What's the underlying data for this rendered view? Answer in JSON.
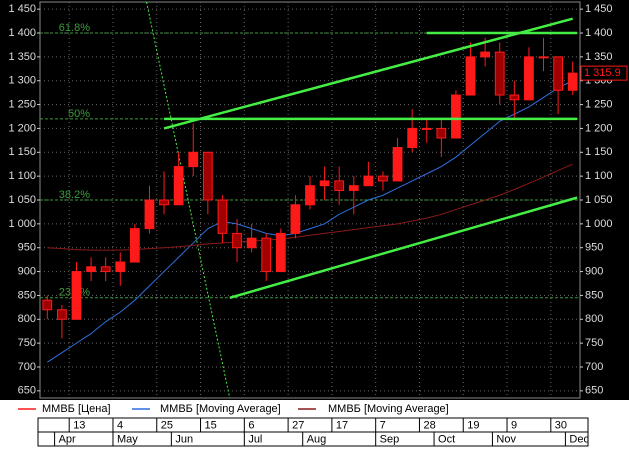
{
  "chart_data": {
    "type": "candlestick",
    "ylim": [
      635,
      1465
    ],
    "yticks": [
      650,
      700,
      750,
      800,
      850,
      900,
      950,
      {
        "value": 1000,
        "label": "1 000"
      },
      {
        "value": 1050,
        "label": "1 050"
      },
      {
        "value": 1100,
        "label": "1 100"
      },
      {
        "value": 1150,
        "label": "1 150"
      },
      {
        "value": 1200,
        "label": "1 200"
      },
      {
        "value": 1250,
        "label": "1 250"
      },
      {
        "value": 1300,
        "label": "1 300"
      },
      {
        "value": 1350,
        "label": "1 350"
      },
      {
        "value": 1400,
        "label": "1 400"
      },
      {
        "value": 1450,
        "label": "1 450"
      }
    ],
    "grid": true,
    "categories": [
      null,
      null,
      "13",
      null,
      null,
      "4",
      null,
      null,
      "25",
      null,
      null,
      "15",
      null,
      null,
      "6",
      null,
      null,
      "27",
      null,
      null,
      "17",
      null,
      null,
      "7",
      null,
      null,
      "28",
      null,
      null,
      "19",
      null,
      null,
      "9",
      null,
      null,
      "30",
      null
    ],
    "month_labels": [
      null,
      "Apr",
      null,
      null,
      null,
      "May",
      null,
      null,
      null,
      "Jun",
      null,
      null,
      null,
      null,
      "Jul",
      null,
      null,
      null,
      "Aug",
      null,
      null,
      null,
      null,
      "Sep",
      null,
      null,
      null,
      "Oct",
      null,
      null,
      null,
      "Nov",
      null,
      null,
      null,
      null,
      "Dec"
    ],
    "candles": {
      "name": "ММВБ [Цена]",
      "color": "#ff1a1a",
      "open": [
        840,
        820,
        800,
        900,
        910,
        900,
        920,
        990,
        1050,
        1040,
        1120,
        1150,
        1050,
        980,
        950,
        970,
        900,
        980,
        1040,
        1080,
        1090,
        1070,
        1080,
        1100,
        1090,
        1160,
        1200,
        1200,
        1180,
        1270,
        1350,
        1360,
        1270,
        1260,
        1350,
        1350,
        1280
      ],
      "high": [
        850,
        830,
        920,
        930,
        930,
        940,
        1000,
        1080,
        1110,
        1150,
        1210,
        1150,
        1060,
        1010,
        1000,
        980,
        990,
        1060,
        1100,
        1120,
        1120,
        1100,
        1130,
        1110,
        1180,
        1240,
        1220,
        1220,
        1280,
        1380,
        1390,
        1380,
        1300,
        1370,
        1390,
        1350,
        1340
      ],
      "low": [
        800,
        760,
        800,
        880,
        880,
        870,
        920,
        980,
        1020,
        1040,
        1100,
        1020,
        960,
        920,
        940,
        880,
        900,
        970,
        1030,
        1050,
        1040,
        1020,
        1080,
        1070,
        1090,
        1150,
        1170,
        1140,
        1180,
        1270,
        1330,
        1250,
        1220,
        1260,
        1320,
        1230,
        1270
      ],
      "close": [
        820,
        800,
        900,
        910,
        900,
        920,
        990,
        1050,
        1040,
        1120,
        1150,
        1050,
        980,
        950,
        970,
        900,
        980,
        1040,
        1080,
        1090,
        1070,
        1080,
        1100,
        1090,
        1160,
        1200,
        1200,
        1180,
        1270,
        1350,
        1360,
        1270,
        1260,
        1350,
        1350,
        1280,
        1315.9
      ]
    },
    "last_value_label": "1 315.9",
    "series": [
      {
        "name": "ММВБ [Moving Average]",
        "color": "#2f6fe0",
        "values": [
          710,
          730,
          750,
          770,
          795,
          815,
          840,
          870,
          900,
          930,
          960,
          990,
          1005,
          1000,
          990,
          980,
          975,
          980,
          990,
          1000,
          1020,
          1035,
          1050,
          1060,
          1075,
          1090,
          1105,
          1120,
          1140,
          1165,
          1190,
          1215,
          1230,
          1245,
          1265,
          1285,
          1300
        ]
      },
      {
        "name": "ММВБ [Moving Average]",
        "color": "#8b1a1a",
        "values": [
          950,
          948,
          946,
          945,
          945,
          945,
          946,
          948,
          950,
          952,
          955,
          958,
          960,
          962,
          964,
          966,
          968,
          972,
          976,
          980,
          984,
          988,
          992,
          996,
          1000,
          1006,
          1012,
          1020,
          1030,
          1040,
          1050,
          1060,
          1072,
          1085,
          1098,
          1112,
          1125
        ]
      }
    ],
    "trend_lines": [
      {
        "color": "#44ee44",
        "points": [
          [
            8,
            1200
          ],
          [
            36,
            1430
          ]
        ]
      },
      {
        "color": "#44ee44",
        "points": [
          [
            12.5,
            845
          ],
          [
            36.3,
            1055
          ]
        ]
      },
      {
        "color": "#44ee44",
        "points": [
          [
            8,
            1220
          ],
          [
            36.3,
            1220
          ]
        ]
      },
      {
        "color": "#44ee44",
        "points": [
          [
            26,
            1400
          ],
          [
            36.3,
            1400
          ]
        ]
      }
    ],
    "fib_line": {
      "color": "#44ee44",
      "points": [
        [
          6.8,
          1465
        ],
        [
          12.5,
          635
        ]
      ]
    },
    "fib_levels": [
      {
        "label": "61.8%",
        "value": 1400
      },
      {
        "label": "50%",
        "value": 1220
      },
      {
        "label": "38.2%",
        "value": 1050
      },
      {
        "label": "23.6%",
        "value": 845
      }
    ]
  }
}
